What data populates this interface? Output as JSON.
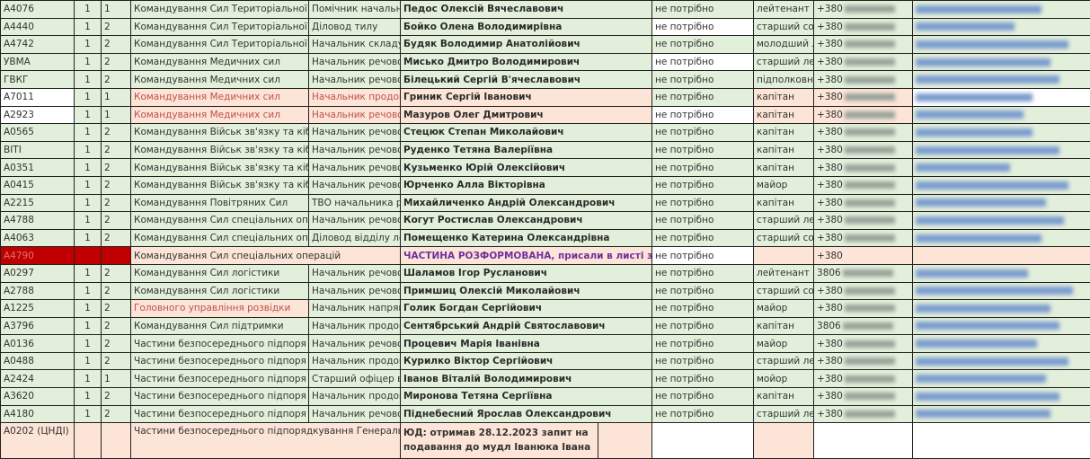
{
  "rows": [
    {
      "code": "А4076",
      "b": "1",
      "c": "1",
      "command": "Командування Сил Територіальної",
      "position": "Помічник начальн",
      "name": "Педос Олексій Вячеславович",
      "need": "не потрібно",
      "rank": "лейтенант",
      "phone": "+380",
      "style": ""
    },
    {
      "code": "А4440",
      "b": "1",
      "c": "2",
      "command": "Командування Сил Територіальної",
      "position": "Діловод тилу",
      "name": "Бойко Олена Володимирівна",
      "need": "не потрібно",
      "rank": "старший сол",
      "phone": "+380",
      "style": "needwhite"
    },
    {
      "code": "А4742",
      "b": "1",
      "c": "2",
      "command": "Командування Сил Територіальної",
      "position": "Начальник складу",
      "name": "Будяк Володимир Анатолійович",
      "need": "не потрібно",
      "rank": "молодший л",
      "phone": "+380",
      "style": ""
    },
    {
      "code": "УВМА",
      "b": "1",
      "c": "2",
      "command": "Командування Медичних сил",
      "position": "Начальник речово",
      "name": "Мисько Дмитро Володимирович",
      "need": "не потрібно",
      "rank": "старший лей",
      "phone": "+380",
      "style": "needwhite"
    },
    {
      "code": "ГВКГ",
      "b": "1",
      "c": "2",
      "command": "Командування Медичних сил",
      "position": "Начальник речово",
      "name": "Білецький Сергій В'ячеславович",
      "need": "не потрібно",
      "rank": "підполковн",
      "phone": "+380",
      "style": ""
    },
    {
      "code": "А7011",
      "b": "1",
      "c": "1",
      "command": "Командування Медичних сил",
      "position": "Начальник продов",
      "name": "Гриник Сергій Іванович",
      "need": "не потрібно",
      "rank": "капітан",
      "phone": "+380",
      "style": "pinkrow"
    },
    {
      "code": "А2923",
      "b": "1",
      "c": "1",
      "command": "Командування Медичних сил",
      "position": "Начальник речово",
      "name": "Мазуров Олег Дмитрович",
      "need": "не потрібно",
      "rank": "капітан",
      "phone": "+380",
      "style": "pinkrow needwhite"
    },
    {
      "code": "А0565",
      "b": "1",
      "c": "2",
      "command": "Командування Військ зв'язку та кіб",
      "position": "Начальник речово",
      "name": "Стецюк Степан Миколайович",
      "need": "не потрібно",
      "rank": "капітан",
      "phone": "+380",
      "style": ""
    },
    {
      "code": "ВІТІ",
      "b": "1",
      "c": "2",
      "command": "Командування Військ зв'язку та кіб",
      "position": "Начальник речово",
      "name": "Руденко Тетяна Валеріївна",
      "need": "не потрібно",
      "rank": "капітан",
      "phone": "+380",
      "style": ""
    },
    {
      "code": "А0351",
      "b": "1",
      "c": "2",
      "command": "Командування Військ зв'язку та кіб",
      "position": "Начальник речово",
      "name": "Кузьменко Юрій Олексійович",
      "need": "не потрібно",
      "rank": "капітан",
      "phone": "+380",
      "style": ""
    },
    {
      "code": "А0415",
      "b": "1",
      "c": "2",
      "command": "Командування Військ зв'язку та кіб",
      "position": "Начальник речово",
      "name": "Юрченко Алла Вікторівна",
      "need": "не потрібно",
      "rank": "майор",
      "phone": "+380",
      "style": ""
    },
    {
      "code": "А2215",
      "b": "1",
      "c": "2",
      "command": "Командування Повітряних Сил",
      "position": "ТВО начальника р",
      "name": "Михайличенко Андрій Олександрович",
      "need": "не потрібно",
      "rank": "капітан",
      "phone": "+380",
      "style": ""
    },
    {
      "code": "А4788",
      "b": "1",
      "c": "2",
      "command": "Командування Сил спеціальних оп",
      "position": "Начальник речово",
      "name": "Когут Ростислав Олександрович",
      "need": "не потрібно",
      "rank": "старший ле",
      "phone": "+380",
      "style": ""
    },
    {
      "code": "А4063",
      "b": "1",
      "c": "2",
      "command": "Командування Сил спеціальних оп",
      "position": "Діловод відділу ло",
      "name": "Помещенко Катерина Олександрівна",
      "need": "не потрібно",
      "rank": "старший со",
      "phone": "+380",
      "style": ""
    },
    {
      "code": "А4790",
      "b": "",
      "c": "",
      "command": "Командування Сил спеціальних операцій",
      "position": "",
      "name": "ЧАСТИНА РОЗФОРМОВАНА, присали в листі зі сп",
      "need": "не потрібно",
      "rank": "",
      "phone": "+380",
      "style": "disbanded needwhite"
    },
    {
      "code": "А0297",
      "b": "1",
      "c": "2",
      "command": "Командування Сил логістики",
      "position": "Начальник речово",
      "name": "Шаламов Ігор Русланович",
      "need": "не потрібно",
      "rank": "лейтенант",
      "phone": "3806",
      "style": ""
    },
    {
      "code": "А2788",
      "b": "1",
      "c": "2",
      "command": "Командування Сил логістики",
      "position": "Начальник речово",
      "name": "Примшиц Олексій Миколайович",
      "need": "не потрібно",
      "rank": "старший со",
      "phone": "+380",
      "style": ""
    },
    {
      "code": "А1225",
      "b": "1",
      "c": "2",
      "command": "Головного управління розвідки",
      "position": "Начальник напрям",
      "name": "Голик Богдан Сергійович",
      "need": "не потрібно",
      "rank": "майор",
      "phone": "+380",
      "style": "pinkcmd"
    },
    {
      "code": "А3796",
      "b": "1",
      "c": "2",
      "command": "Командування Сил підтримки",
      "position": "Начальник продов",
      "name": "Сентябрський Андрій Святославович",
      "need": "не потрібно",
      "rank": "капітан",
      "phone": "3806",
      "style": ""
    },
    {
      "code": "А0136",
      "b": "1",
      "c": "2",
      "command": "Частини безпосереднього підпоря",
      "position": "Начальник речово",
      "name": "Процевич Марія Іванівна",
      "need": "не потрібно",
      "rank": "майор",
      "phone": "+380",
      "style": ""
    },
    {
      "code": "А0488",
      "b": "1",
      "c": "2",
      "command": "Частини безпосереднього підпоря",
      "position": "Начальник продов",
      "name": "Курилко Віктор Сергійович",
      "need": "не потрібно",
      "rank": "старший ле",
      "phone": "+380",
      "style": ""
    },
    {
      "code": "А2424",
      "b": "1",
      "c": "1",
      "command": "Частини безпосереднього підпоря",
      "position": "Старший офіцер в",
      "name": "Іванов Віталій Володимирович",
      "need": "не потрібно",
      "rank": "мойор",
      "phone": "+380",
      "style": ""
    },
    {
      "code": "А3620",
      "b": "1",
      "c": "2",
      "command": "Частини безпосереднього підпоря",
      "position": "Начальник продов",
      "name": "Миронова Тетяна Сергіївна",
      "need": "не потрібно",
      "rank": "капітан",
      "phone": "+380",
      "style": ""
    },
    {
      "code": "А4180",
      "b": "1",
      "c": "2",
      "command": "Частини безпосереднього підпоря",
      "position": "Начальник речово",
      "name": "Піднебесний Ярослав Олександрович",
      "need": "не потрібно",
      "rank": "старший ле",
      "phone": "+380",
      "style": ""
    }
  ],
  "last_row": {
    "code": "А0202 (ЦНДІ)",
    "command": "Частини безпосереднього підпорядкування Генеральн",
    "note": "ЮД: отримав 28.12.2023 запит на подавання до мудл Іванюка Івана"
  },
  "colors": {
    "green": "#e2efda",
    "pink": "#fce4d6",
    "red": "#c00000",
    "purple": "#7030a0"
  }
}
